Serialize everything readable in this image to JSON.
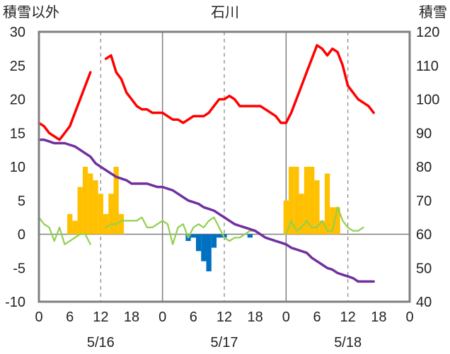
{
  "chart_data": {
    "type": "bar+line",
    "title": "石川",
    "left_axis_label": "積雪以外",
    "right_axis_label": "積雪",
    "left_ylim": [
      -10,
      30
    ],
    "left_yticks": [
      "30",
      "25",
      "20",
      "15",
      "10",
      "5",
      "0",
      "-5",
      "-10"
    ],
    "right_ylim": [
      40,
      120
    ],
    "right_yticks": [
      "120",
      "110",
      "100",
      "90",
      "80",
      "70",
      "60",
      "50",
      "40"
    ],
    "x_range_hours": [
      0,
      72
    ],
    "x_tick_labels": [
      "0",
      "6",
      "12",
      "18",
      "0",
      "6",
      "12",
      "18",
      "0",
      "6",
      "12",
      "18",
      "0"
    ],
    "day_labels": [
      "5/16",
      "5/17",
      "5/18"
    ],
    "grid": "vertical solid at day boundaries, dashed at noon",
    "series": [
      {
        "name": "",
        "kind": "bar",
        "axis": "left",
        "color": "#ffc000",
        "points": [
          [
            6,
            3
          ],
          [
            7,
            2
          ],
          [
            8,
            7
          ],
          [
            9,
            10
          ],
          [
            10,
            9
          ],
          [
            11,
            8
          ],
          [
            12,
            6
          ],
          [
            13,
            3
          ],
          [
            14,
            6
          ],
          [
            15,
            10
          ],
          [
            16,
            3
          ],
          [
            48,
            5
          ],
          [
            49,
            10
          ],
          [
            50,
            10
          ],
          [
            51,
            6
          ],
          [
            52,
            10
          ],
          [
            53,
            10
          ],
          [
            54,
            8
          ],
          [
            55,
            2
          ],
          [
            56,
            9
          ],
          [
            57,
            4
          ],
          [
            58,
            4
          ]
        ]
      },
      {
        "name": "",
        "kind": "bar",
        "axis": "left",
        "color": "#0070c0",
        "points": [
          [
            29,
            -1
          ],
          [
            30,
            -0.5
          ],
          [
            31,
            -2.5
          ],
          [
            32,
            -4
          ],
          [
            33,
            -5.5
          ],
          [
            34,
            -2
          ],
          [
            35,
            -0.5
          ],
          [
            36,
            -0.5
          ],
          [
            41,
            -0.5
          ]
        ]
      },
      {
        "name": "",
        "kind": "line",
        "axis": "left",
        "color": "#ff0000",
        "segments": [
          [
            [
              0,
              16.5
            ],
            [
              1,
              16
            ],
            [
              2,
              15
            ],
            [
              3,
              14.5
            ],
            [
              4,
              14
            ],
            [
              5,
              15
            ],
            [
              6,
              16
            ],
            [
              7,
              18
            ],
            [
              8,
              20
            ],
            [
              9,
              22
            ],
            [
              10,
              24
            ]
          ],
          [
            [
              13,
              26
            ],
            [
              14,
              26.5
            ],
            [
              15,
              24
            ],
            [
              16,
              23
            ],
            [
              17,
              21
            ],
            [
              18,
              20
            ],
            [
              19,
              19
            ],
            [
              20,
              18.5
            ],
            [
              21,
              18.5
            ],
            [
              22,
              18
            ],
            [
              24,
              18
            ],
            [
              25,
              17.5
            ],
            [
              26,
              17
            ],
            [
              27,
              17
            ],
            [
              28,
              16.5
            ],
            [
              29,
              17
            ],
            [
              30,
              17.5
            ],
            [
              32,
              17.5
            ],
            [
              33,
              18
            ],
            [
              34,
              19
            ],
            [
              35,
              20
            ],
            [
              36,
              20
            ],
            [
              37,
              20.5
            ],
            [
              38,
              20
            ],
            [
              39,
              19
            ],
            [
              40,
              19
            ],
            [
              41,
              19
            ],
            [
              42,
              19
            ],
            [
              43,
              19
            ],
            [
              44,
              18.5
            ],
            [
              45,
              18
            ],
            [
              46,
              17.5
            ],
            [
              47,
              16.5
            ],
            [
              48,
              16.5
            ],
            [
              49,
              18
            ],
            [
              50,
              20
            ],
            [
              51,
              22
            ],
            [
              52,
              24
            ],
            [
              53,
              26
            ],
            [
              54,
              28
            ],
            [
              55,
              27.5
            ],
            [
              56,
              26.5
            ],
            [
              57,
              27.5
            ],
            [
              58,
              27
            ],
            [
              59,
              25
            ],
            [
              60,
              22
            ],
            [
              61,
              21
            ],
            [
              62,
              20
            ],
            [
              63,
              19.5
            ],
            [
              64,
              19
            ],
            [
              65,
              18
            ]
          ]
        ]
      },
      {
        "name": "",
        "kind": "line",
        "axis": "left",
        "color": "#92d050",
        "segments": [
          [
            [
              0,
              2.5
            ],
            [
              1,
              1.5
            ],
            [
              2,
              1
            ],
            [
              3,
              -1
            ],
            [
              4,
              1
            ],
            [
              5,
              -1.5
            ],
            [
              6,
              -1
            ],
            [
              7,
              -0.5
            ],
            [
              8,
              0
            ],
            [
              9,
              0
            ],
            [
              10,
              -1.5
            ]
          ],
          [
            [
              13,
              1
            ],
            [
              14,
              1.5
            ],
            [
              15,
              1.5
            ],
            [
              16,
              2
            ],
            [
              17,
              2
            ],
            [
              18,
              2
            ],
            [
              19,
              2
            ],
            [
              20,
              2.5
            ],
            [
              21,
              1
            ],
            [
              22,
              1
            ],
            [
              23,
              1.5
            ],
            [
              24,
              2
            ],
            [
              25,
              1.5
            ],
            [
              26,
              -1.5
            ],
            [
              27,
              1
            ],
            [
              28,
              1.5
            ],
            [
              29,
              -0.5
            ],
            [
              30,
              1
            ],
            [
              31,
              1.5
            ],
            [
              32,
              1
            ],
            [
              33,
              2
            ],
            [
              34,
              2.5
            ],
            [
              35,
              1
            ],
            [
              36,
              -0.5
            ],
            [
              37,
              -1
            ],
            [
              38,
              -0.5
            ],
            [
              39,
              -0.5
            ],
            [
              40,
              0
            ],
            [
              41,
              0.5
            ],
            [
              42,
              0.5
            ]
          ],
          [
            [
              48,
              0
            ],
            [
              49,
              2
            ],
            [
              50,
              0.5
            ],
            [
              51,
              1
            ],
            [
              52,
              2
            ],
            [
              53,
              1
            ],
            [
              54,
              1
            ],
            [
              55,
              2
            ],
            [
              56,
              0.5
            ],
            [
              57,
              0.5
            ],
            [
              58,
              4
            ],
            [
              59,
              2
            ],
            [
              60,
              1
            ],
            [
              61,
              0.5
            ],
            [
              62,
              0.5
            ],
            [
              63,
              1
            ]
          ]
        ]
      },
      {
        "name": "",
        "kind": "line",
        "axis": "right",
        "color": "#7030a0",
        "segments": [
          [
            [
              0,
              88
            ],
            [
              1,
              88
            ],
            [
              2,
              87.5
            ],
            [
              3,
              87
            ],
            [
              4,
              87
            ],
            [
              5,
              87
            ],
            [
              6,
              86.5
            ],
            [
              7,
              86
            ],
            [
              8,
              85
            ],
            [
              9,
              84
            ],
            [
              10,
              83
            ],
            [
              11,
              81
            ],
            [
              12,
              80
            ],
            [
              13,
              79
            ],
            [
              14,
              78
            ],
            [
              15,
              77
            ],
            [
              16,
              76.5
            ],
            [
              17,
              76
            ],
            [
              18,
              75
            ],
            [
              19,
              75
            ],
            [
              20,
              75
            ],
            [
              21,
              75
            ],
            [
              22,
              74.5
            ],
            [
              23,
              74
            ],
            [
              24,
              74
            ],
            [
              25,
              73.5
            ],
            [
              26,
              73
            ],
            [
              27,
              72
            ],
            [
              28,
              71
            ],
            [
              29,
              70
            ],
            [
              30,
              69.5
            ],
            [
              31,
              69
            ],
            [
              32,
              68
            ],
            [
              33,
              67.5
            ],
            [
              34,
              67
            ],
            [
              35,
              66
            ],
            [
              36,
              65
            ],
            [
              37,
              64
            ],
            [
              38,
              63
            ],
            [
              39,
              62.5
            ],
            [
              40,
              62
            ],
            [
              41,
              61.5
            ],
            [
              42,
              61
            ],
            [
              43,
              60
            ],
            [
              44,
              59
            ],
            [
              45,
              58.5
            ],
            [
              46,
              58
            ],
            [
              47,
              57.5
            ],
            [
              48,
              57
            ],
            [
              49,
              56
            ],
            [
              50,
              55.5
            ],
            [
              51,
              55
            ],
            [
              52,
              54.5
            ],
            [
              53,
              53
            ],
            [
              54,
              52
            ],
            [
              55,
              51
            ],
            [
              56,
              50
            ],
            [
              57,
              49.5
            ],
            [
              58,
              48.5
            ],
            [
              59,
              48
            ],
            [
              60,
              47.5
            ],
            [
              61,
              47
            ],
            [
              62,
              46
            ],
            [
              63,
              46
            ],
            [
              64,
              46
            ],
            [
              65,
              46
            ]
          ]
        ]
      }
    ]
  }
}
